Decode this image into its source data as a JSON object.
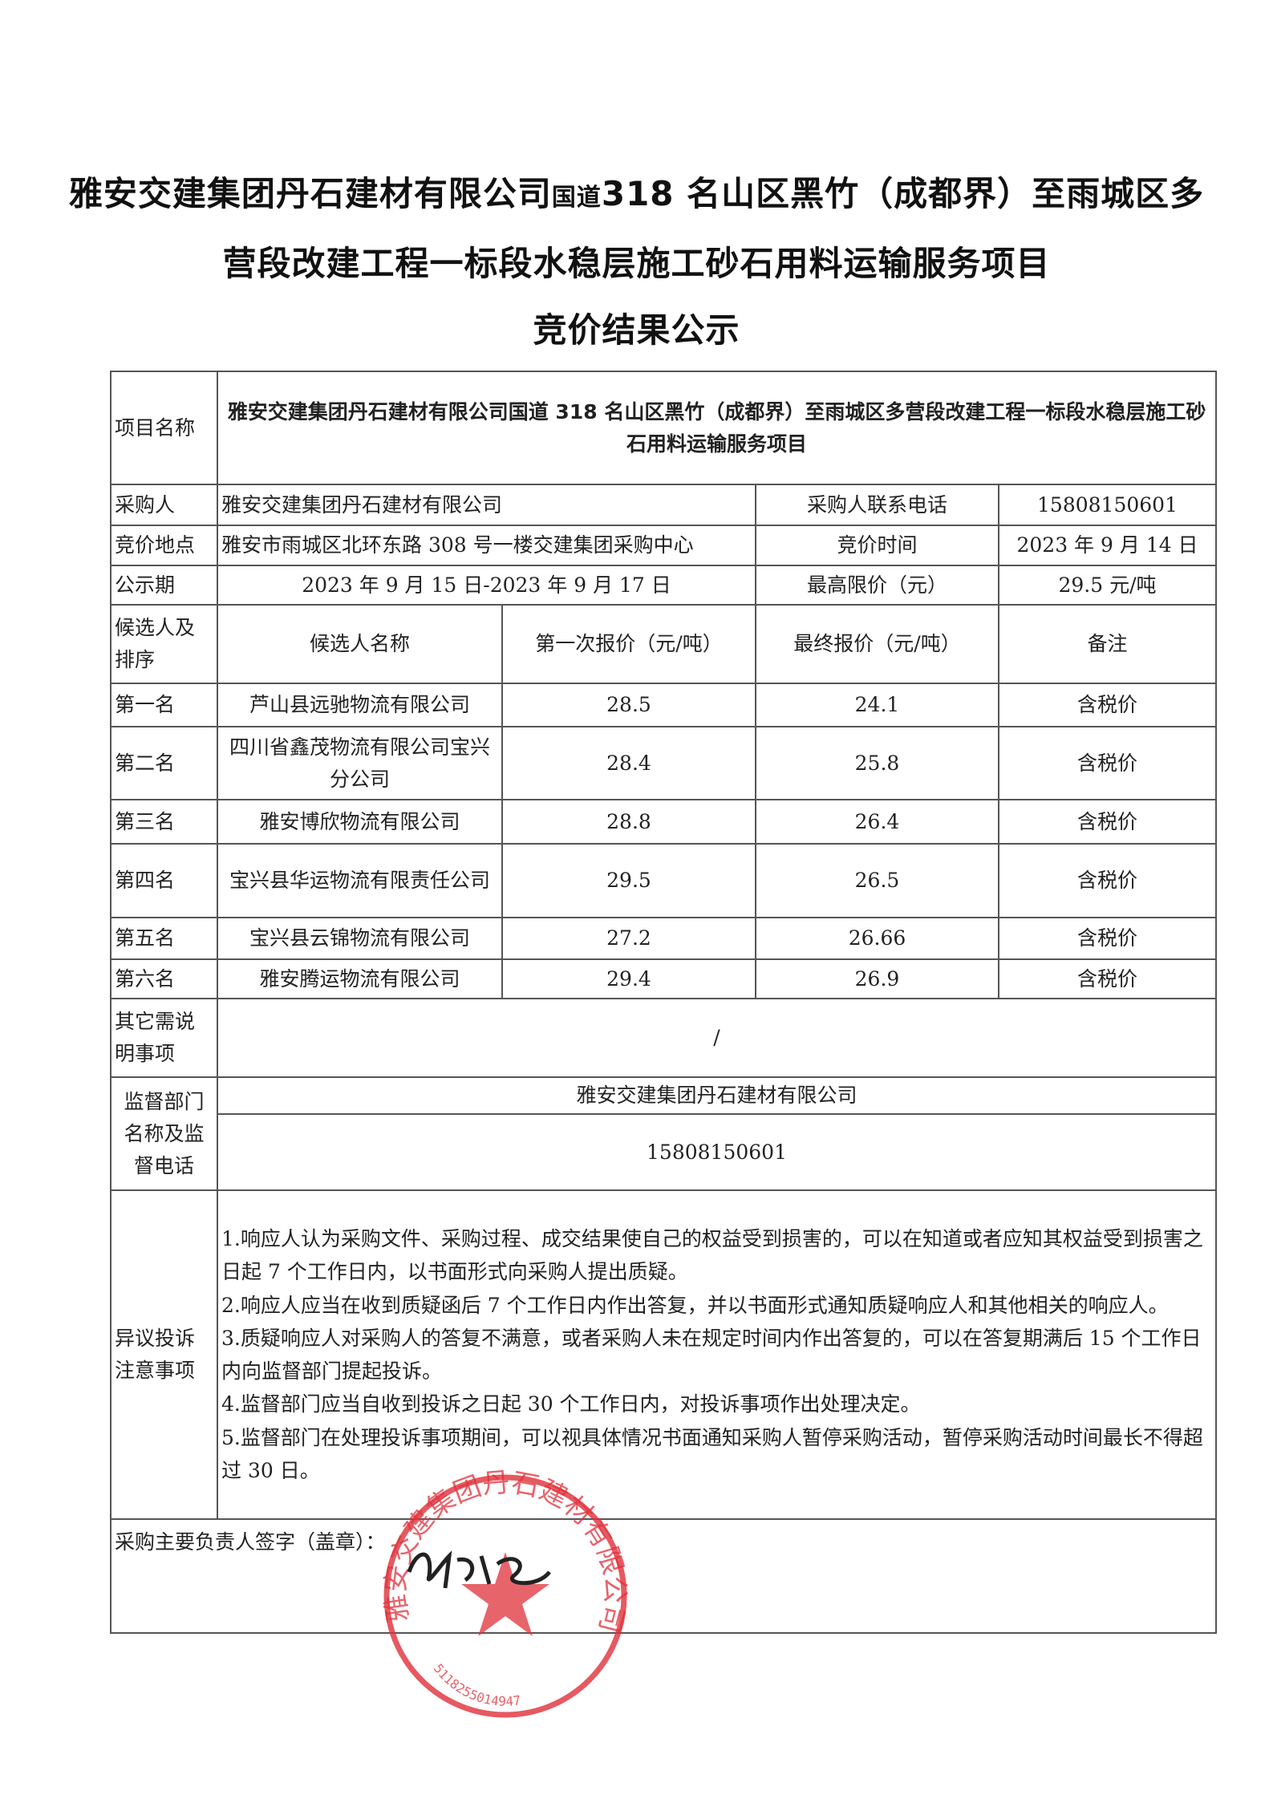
{
  "title": {
    "line1_a": "雅安交建集团丹石建材有限公司",
    "line1_b": "国道",
    "line1_c": "318 名山区黑竹（成都界）至雨城区多",
    "line2": "营段改建工程一标段水稳层施工砂石用料运输服务项目",
    "line3": "竞价结果公示"
  },
  "info": {
    "project_label": "项目名称",
    "project_value": "雅安交建集团丹石建材有限公司国道 318 名山区黑竹（成都界）至雨城区多营段改建工程一标段水稳层施工砂石用料运输服务项目",
    "buyer_label": "采购人",
    "buyer_value": "雅安交建集团丹石建材有限公司",
    "buyer_phone_label": "采购人联系电话",
    "buyer_phone_value": "15808150601",
    "location_label": "竞价地点",
    "location_value": "雅安市雨城区北环东路 308 号一楼交建集团采购中心",
    "time_label": "竞价时间",
    "time_value": "2023 年 9 月 14 日",
    "period_label": "公示期",
    "period_value": "2023 年 9 月 15 日-2023 年 9 月 17 日",
    "max_price_label": "最高限价（元）",
    "max_price_value": "29.5 元/吨"
  },
  "candidates": {
    "headers": [
      "候选人及排序",
      "候选人名称",
      "第一次报价（元/吨）",
      "最终报价（元/吨）",
      "备注"
    ],
    "rows": [
      {
        "rank": "第一名",
        "name": "芦山县远驰物流有限公司",
        "first": "28.5",
        "final": "24.1",
        "note": "含税价"
      },
      {
        "rank": "第二名",
        "name": "四川省鑫茂物流有限公司宝兴分公司",
        "first": "28.4",
        "final": "25.8",
        "note": "含税价"
      },
      {
        "rank": "第三名",
        "name": "雅安博欣物流有限公司",
        "first": "28.8",
        "final": "26.4",
        "note": "含税价"
      },
      {
        "rank": "第四名",
        "name": "宝兴县华运物流有限责任公司",
        "first": "29.5",
        "final": "26.5",
        "note": "含税价"
      },
      {
        "rank": "第五名",
        "name": "宝兴县云锦物流有限公司",
        "first": "27.2",
        "final": "26.66",
        "note": "含税价"
      },
      {
        "rank": "第六名",
        "name": "雅安腾运物流有限公司",
        "first": "29.4",
        "final": "26.9",
        "note": "含税价"
      }
    ]
  },
  "other": {
    "label": "其它需说明事项",
    "value": "/"
  },
  "supervision": {
    "label": "监督部门名称及监督电话",
    "name": "雅安交建集团丹石建材有限公司",
    "phone": "15808150601"
  },
  "objection": {
    "label": "异议投诉注意事项",
    "items": [
      "1.响应人认为采购文件、采购过程、成交结果使自己的权益受到损害的，可以在知道或者应知其权益受到损害之日起 7 个工作日内，以书面形式向采购人提出质疑。",
      "2.响应人应当在收到质疑函后 7 个工作日内作出答复，并以书面形式通知质疑响应人和其他相关的响应人。",
      "3.质疑响应人对采购人的答复不满意，或者采购人未在规定时间内作出答复的，可以在答复期满后 15 个工作日内向监督部门提起投诉。",
      "4.监督部门应当自收到投诉之日起 30 个工作日内，对投诉事项作出处理决定。",
      "5.监督部门在处理投诉事项期间，可以视具体情况书面通知采购人暂停采购活动，暂停采购活动时间最长不得超过 30 日。"
    ]
  },
  "signature": {
    "label": "采购主要负责人签字（盖章）：",
    "stamp_text": "雅安交建集团丹石建材有限公司",
    "stamp_number": "5118255014947"
  },
  "colors": {
    "stamp": "#e0303a",
    "border": "#555555"
  }
}
